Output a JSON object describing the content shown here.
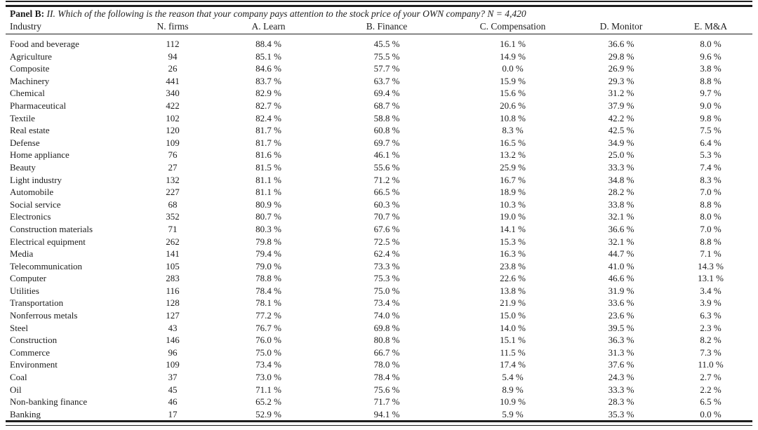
{
  "panel": {
    "label": "Panel B:",
    "question": "II. Which of the following is the reason that your company pays attention to the stock price of your OWN company? N = 4,420"
  },
  "table": {
    "columns": [
      "Industry",
      "N. firms",
      "A. Learn",
      "B. Finance",
      "C. Compensation",
      "D. Monitor",
      "E. M&A"
    ],
    "rows": [
      [
        "Food and beverage",
        "112",
        "88.4 %",
        "45.5 %",
        "16.1 %",
        "36.6 %",
        "8.0 %"
      ],
      [
        "Agriculture",
        "94",
        "85.1 %",
        "75.5 %",
        "14.9 %",
        "29.8 %",
        "9.6 %"
      ],
      [
        "Composite",
        "26",
        "84.6 %",
        "57.7 %",
        "0.0 %",
        "26.9 %",
        "3.8 %"
      ],
      [
        "Machinery",
        "441",
        "83.7 %",
        "63.7 %",
        "15.9 %",
        "29.3 %",
        "8.8 %"
      ],
      [
        "Chemical",
        "340",
        "82.9 %",
        "69.4 %",
        "15.6 %",
        "31.2 %",
        "9.7 %"
      ],
      [
        "Pharmaceutical",
        "422",
        "82.7 %",
        "68.7 %",
        "20.6 %",
        "37.9 %",
        "9.0 %"
      ],
      [
        "Textile",
        "102",
        "82.4 %",
        "58.8 %",
        "10.8 %",
        "42.2 %",
        "9.8 %"
      ],
      [
        "Real estate",
        "120",
        "81.7 %",
        "60.8 %",
        "8.3 %",
        "42.5 %",
        "7.5 %"
      ],
      [
        "Defense",
        "109",
        "81.7 %",
        "69.7 %",
        "16.5 %",
        "34.9 %",
        "6.4 %"
      ],
      [
        "Home appliance",
        "76",
        "81.6 %",
        "46.1 %",
        "13.2 %",
        "25.0 %",
        "5.3 %"
      ],
      [
        "Beauty",
        "27",
        "81.5 %",
        "55.6 %",
        "25.9 %",
        "33.3 %",
        "7.4 %"
      ],
      [
        "Light industry",
        "132",
        "81.1 %",
        "71.2 %",
        "16.7 %",
        "34.8 %",
        "8.3 %"
      ],
      [
        "Automobile",
        "227",
        "81.1 %",
        "66.5 %",
        "18.9 %",
        "28.2 %",
        "7.0 %"
      ],
      [
        "Social service",
        "68",
        "80.9 %",
        "60.3 %",
        "10.3 %",
        "33.8 %",
        "8.8 %"
      ],
      [
        "Electronics",
        "352",
        "80.7 %",
        "70.7 %",
        "19.0 %",
        "32.1 %",
        "8.0 %"
      ],
      [
        "Construction materials",
        "71",
        "80.3 %",
        "67.6 %",
        "14.1 %",
        "36.6 %",
        "7.0 %"
      ],
      [
        "Electrical equipment",
        "262",
        "79.8 %",
        "72.5 %",
        "15.3 %",
        "32.1 %",
        "8.8 %"
      ],
      [
        "Media",
        "141",
        "79.4 %",
        "62.4 %",
        "16.3 %",
        "44.7 %",
        "7.1 %"
      ],
      [
        "Telecommunication",
        "105",
        "79.0 %",
        "73.3 %",
        "23.8 %",
        "41.0 %",
        "14.3 %"
      ],
      [
        "Computer",
        "283",
        "78.8 %",
        "75.3 %",
        "22.6 %",
        "46.6 %",
        "13.1 %"
      ],
      [
        "Utilities",
        "116",
        "78.4 %",
        "75.0 %",
        "13.8 %",
        "31.9 %",
        "3.4 %"
      ],
      [
        "Transportation",
        "128",
        "78.1 %",
        "73.4 %",
        "21.9 %",
        "33.6 %",
        "3.9 %"
      ],
      [
        "Nonferrous metals",
        "127",
        "77.2 %",
        "74.0 %",
        "15.0 %",
        "23.6 %",
        "6.3 %"
      ],
      [
        "Steel",
        "43",
        "76.7 %",
        "69.8 %",
        "14.0 %",
        "39.5 %",
        "2.3 %"
      ],
      [
        "Construction",
        "146",
        "76.0 %",
        "80.8 %",
        "15.1 %",
        "36.3 %",
        "8.2 %"
      ],
      [
        "Commerce",
        "96",
        "75.0 %",
        "66.7 %",
        "11.5 %",
        "31.3 %",
        "7.3 %"
      ],
      [
        "Environment",
        "109",
        "73.4 %",
        "78.0 %",
        "17.4 %",
        "37.6 %",
        "11.0 %"
      ],
      [
        "Coal",
        "37",
        "73.0 %",
        "78.4 %",
        "5.4 %",
        "24.3 %",
        "2.7 %"
      ],
      [
        "Oil",
        "45",
        "71.1 %",
        "75.6 %",
        "8.9 %",
        "33.3 %",
        "2.2 %"
      ],
      [
        "Non-banking finance",
        "46",
        "65.2 %",
        "71.7 %",
        "10.9 %",
        "28.3 %",
        "6.5 %"
      ],
      [
        "Banking",
        "17",
        "52.9 %",
        "94.1 %",
        "5.9 %",
        "35.3 %",
        "0.0 %"
      ]
    ]
  }
}
